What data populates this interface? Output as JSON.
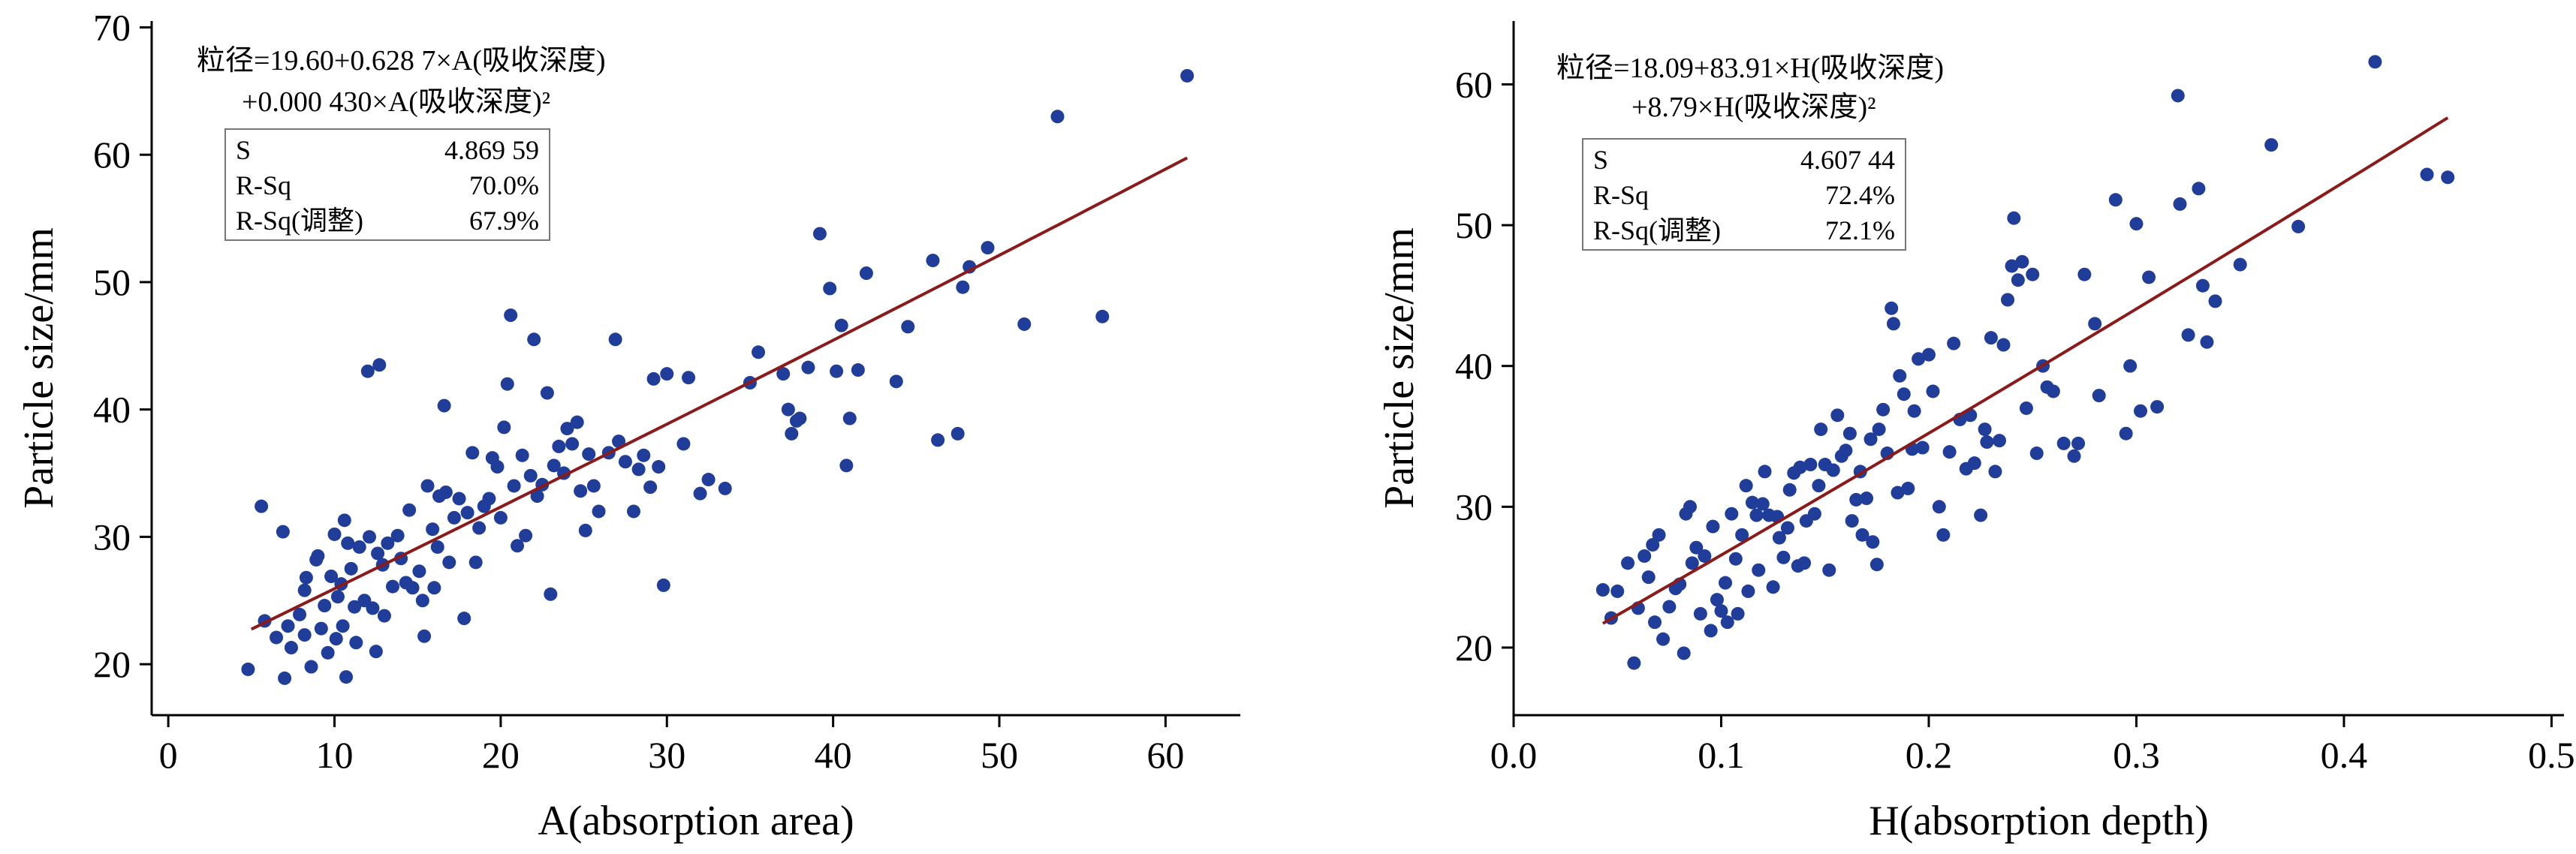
{
  "chart_data": [
    {
      "type": "scatter",
      "id": "left",
      "xlabel": "A(absorption area)",
      "ylabel": "Particle size/mm",
      "xlim": [
        -1,
        64.5
      ],
      "ylim": [
        16,
        70.5
      ],
      "xticks": [
        0,
        10,
        20,
        30,
        40,
        50,
        60
      ],
      "yticks": [
        20,
        30,
        40,
        50,
        60,
        70
      ],
      "equation": [
        "粒径=19.60+0.628 7×A(吸收深度)",
        "+0.000 430×A(吸收深度)²"
      ],
      "stats": [
        {
          "name": "S",
          "value": "4.869 59"
        },
        {
          "name": "R-Sq",
          "value": "70.0%"
        },
        {
          "name": "R-Sq(调整)",
          "value": "67.9%"
        }
      ],
      "point_color": "#1f3d99",
      "line_color": "#8b1a1a",
      "fit": {
        "intercept": 19.6,
        "b1": 0.6287,
        "b2": 0.00043,
        "x_range": [
          5,
          61.3
        ]
      },
      "points": [
        [
          4.8,
          19.6
        ],
        [
          5.6,
          32.4
        ],
        [
          5.8,
          23.4
        ],
        [
          6.5,
          22.1
        ],
        [
          6.9,
          30.4
        ],
        [
          7.0,
          18.9
        ],
        [
          7.2,
          23.0
        ],
        [
          7.4,
          21.3
        ],
        [
          7.9,
          23.9
        ],
        [
          8.2,
          22.3
        ],
        [
          8.2,
          25.8
        ],
        [
          8.3,
          26.8
        ],
        [
          8.6,
          19.8
        ],
        [
          8.9,
          28.2
        ],
        [
          9.0,
          28.5
        ],
        [
          9.2,
          22.8
        ],
        [
          9.4,
          24.6
        ],
        [
          9.6,
          20.9
        ],
        [
          9.8,
          26.9
        ],
        [
          10.0,
          30.2
        ],
        [
          10.1,
          22.0
        ],
        [
          10.2,
          25.3
        ],
        [
          10.4,
          26.3
        ],
        [
          10.5,
          23.0
        ],
        [
          10.6,
          31.3
        ],
        [
          10.7,
          19.0
        ],
        [
          10.8,
          29.5
        ],
        [
          11.0,
          27.5
        ],
        [
          11.2,
          24.5
        ],
        [
          11.3,
          21.7
        ],
        [
          11.5,
          29.2
        ],
        [
          11.8,
          25.0
        ],
        [
          12.0,
          43.0
        ],
        [
          12.1,
          30.0
        ],
        [
          12.3,
          24.4
        ],
        [
          12.5,
          21.0
        ],
        [
          12.6,
          28.7
        ],
        [
          12.7,
          43.5
        ],
        [
          12.9,
          27.8
        ],
        [
          13.0,
          23.8
        ],
        [
          13.2,
          29.5
        ],
        [
          13.5,
          26.1
        ],
        [
          13.8,
          30.1
        ],
        [
          14.0,
          28.3
        ],
        [
          14.3,
          26.4
        ],
        [
          14.5,
          32.1
        ],
        [
          14.7,
          26.0
        ],
        [
          15.1,
          27.3
        ],
        [
          15.3,
          25.0
        ],
        [
          15.4,
          22.2
        ],
        [
          15.6,
          34.0
        ],
        [
          15.9,
          30.6
        ],
        [
          16.0,
          26.0
        ],
        [
          16.2,
          29.2
        ],
        [
          16.3,
          33.2
        ],
        [
          16.6,
          40.3
        ],
        [
          16.7,
          33.5
        ],
        [
          16.9,
          28.0
        ],
        [
          17.2,
          31.5
        ],
        [
          17.5,
          33.0
        ],
        [
          17.8,
          23.6
        ],
        [
          18.0,
          31.9
        ],
        [
          18.3,
          36.6
        ],
        [
          18.5,
          28.0
        ],
        [
          18.7,
          30.7
        ],
        [
          19.0,
          32.4
        ],
        [
          19.3,
          33.0
        ],
        [
          19.5,
          36.2
        ],
        [
          19.8,
          35.5
        ],
        [
          20.0,
          31.5
        ],
        [
          20.2,
          38.6
        ],
        [
          20.4,
          42.0
        ],
        [
          20.6,
          47.4
        ],
        [
          20.8,
          34.0
        ],
        [
          21.0,
          29.3
        ],
        [
          21.3,
          36.4
        ],
        [
          21.5,
          30.1
        ],
        [
          21.8,
          34.8
        ],
        [
          22.0,
          45.5
        ],
        [
          22.2,
          33.2
        ],
        [
          22.5,
          34.1
        ],
        [
          22.8,
          41.3
        ],
        [
          23.0,
          25.5
        ],
        [
          23.2,
          35.6
        ],
        [
          23.5,
          37.1
        ],
        [
          23.8,
          35.0
        ],
        [
          24.0,
          38.5
        ],
        [
          24.3,
          37.3
        ],
        [
          24.6,
          39.0
        ],
        [
          24.8,
          33.6
        ],
        [
          25.1,
          30.5
        ],
        [
          25.3,
          36.5
        ],
        [
          25.6,
          34.0
        ],
        [
          25.9,
          32.0
        ],
        [
          26.5,
          36.6
        ],
        [
          26.9,
          45.5
        ],
        [
          27.1,
          37.5
        ],
        [
          27.5,
          35.9
        ],
        [
          28.0,
          32.0
        ],
        [
          28.3,
          35.3
        ],
        [
          28.6,
          36.4
        ],
        [
          29.0,
          33.9
        ],
        [
          29.2,
          42.4
        ],
        [
          29.5,
          35.5
        ],
        [
          29.8,
          26.2
        ],
        [
          30.0,
          42.8
        ],
        [
          31.0,
          37.3
        ],
        [
          31.3,
          42.5
        ],
        [
          32.0,
          33.4
        ],
        [
          32.5,
          34.5
        ],
        [
          33.5,
          33.8
        ],
        [
          35.0,
          42.1
        ],
        [
          35.5,
          44.5
        ],
        [
          37.0,
          42.8
        ],
        [
          37.3,
          40.0
        ],
        [
          37.5,
          38.1
        ],
        [
          37.8,
          39.1
        ],
        [
          38.0,
          39.3
        ],
        [
          38.5,
          43.3
        ],
        [
          39.2,
          53.8
        ],
        [
          39.8,
          49.5
        ],
        [
          40.2,
          43.0
        ],
        [
          40.5,
          46.6
        ],
        [
          40.8,
          35.6
        ],
        [
          41.0,
          39.3
        ],
        [
          41.5,
          43.1
        ],
        [
          42.0,
          50.7
        ],
        [
          43.8,
          42.2
        ],
        [
          44.5,
          46.5
        ],
        [
          46.0,
          51.7
        ],
        [
          46.3,
          37.6
        ],
        [
          47.5,
          38.1
        ],
        [
          47.8,
          49.6
        ],
        [
          48.2,
          51.2
        ],
        [
          49.3,
          52.7
        ],
        [
          51.5,
          46.7
        ],
        [
          53.5,
          63.0
        ],
        [
          56.2,
          47.3
        ],
        [
          61.3,
          66.2
        ]
      ]
    },
    {
      "type": "scatter",
      "id": "right",
      "xlabel": "H(absorption depth)",
      "ylabel": "Particle size/mm",
      "xlim": [
        0.0,
        0.506
      ],
      "ylim": [
        15.2,
        64.5
      ],
      "xticks": [
        0.0,
        0.1,
        0.2,
        0.3,
        0.4,
        0.5
      ],
      "yticks": [
        20,
        30,
        40,
        50,
        60
      ],
      "xtick_labels": [
        "0.0",
        "0.1",
        "0.2",
        "0.3",
        "0.4",
        "0.5"
      ],
      "equation": [
        "粒径=18.09+83.91×H(吸收深度)",
        "+8.79×H(吸收深度)²"
      ],
      "stats": [
        {
          "name": "S",
          "value": "4.607 44"
        },
        {
          "name": "R-Sq",
          "value": "72.4%"
        },
        {
          "name": "R-Sq(调整)",
          "value": "72.1%"
        }
      ],
      "point_color": "#1f3d99",
      "line_color": "#8b1a1a",
      "fit": {
        "intercept": 18.09,
        "b1": 83.91,
        "b2": 8.79,
        "x_range": [
          0.043,
          0.45
        ]
      },
      "points": [
        [
          0.043,
          24.1
        ],
        [
          0.047,
          22.1
        ],
        [
          0.05,
          24.0
        ],
        [
          0.055,
          26.0
        ],
        [
          0.058,
          18.9
        ],
        [
          0.06,
          22.8
        ],
        [
          0.063,
          26.5
        ],
        [
          0.065,
          25.0
        ],
        [
          0.067,
          27.3
        ],
        [
          0.068,
          21.8
        ],
        [
          0.07,
          28.0
        ],
        [
          0.072,
          20.6
        ],
        [
          0.075,
          22.9
        ],
        [
          0.078,
          24.2
        ],
        [
          0.08,
          24.5
        ],
        [
          0.082,
          19.6
        ],
        [
          0.083,
          29.5
        ],
        [
          0.085,
          30.0
        ],
        [
          0.086,
          26.0
        ],
        [
          0.088,
          27.1
        ],
        [
          0.09,
          22.4
        ],
        [
          0.092,
          26.5
        ],
        [
          0.095,
          21.2
        ],
        [
          0.096,
          28.6
        ],
        [
          0.098,
          23.4
        ],
        [
          0.1,
          22.6
        ],
        [
          0.102,
          24.6
        ],
        [
          0.103,
          21.8
        ],
        [
          0.105,
          29.5
        ],
        [
          0.107,
          26.3
        ],
        [
          0.108,
          22.4
        ],
        [
          0.11,
          28.0
        ],
        [
          0.112,
          31.5
        ],
        [
          0.113,
          24.0
        ],
        [
          0.115,
          30.3
        ],
        [
          0.117,
          29.4
        ],
        [
          0.118,
          25.5
        ],
        [
          0.12,
          30.2
        ],
        [
          0.121,
          32.5
        ],
        [
          0.123,
          29.4
        ],
        [
          0.125,
          24.3
        ],
        [
          0.127,
          29.3
        ],
        [
          0.128,
          27.8
        ],
        [
          0.13,
          26.4
        ],
        [
          0.132,
          28.5
        ],
        [
          0.133,
          31.2
        ],
        [
          0.135,
          32.4
        ],
        [
          0.137,
          25.8
        ],
        [
          0.138,
          32.8
        ],
        [
          0.14,
          26.0
        ],
        [
          0.141,
          29.0
        ],
        [
          0.143,
          33.0
        ],
        [
          0.145,
          29.5
        ],
        [
          0.147,
          31.5
        ],
        [
          0.148,
          35.5
        ],
        [
          0.15,
          33.0
        ],
        [
          0.152,
          25.5
        ],
        [
          0.154,
          32.6
        ],
        [
          0.156,
          36.5
        ],
        [
          0.158,
          33.6
        ],
        [
          0.16,
          34.0
        ],
        [
          0.162,
          35.2
        ],
        [
          0.163,
          29.0
        ],
        [
          0.165,
          30.5
        ],
        [
          0.167,
          32.5
        ],
        [
          0.168,
          28.0
        ],
        [
          0.17,
          30.6
        ],
        [
          0.172,
          34.8
        ],
        [
          0.173,
          27.5
        ],
        [
          0.175,
          25.9
        ],
        [
          0.176,
          35.5
        ],
        [
          0.178,
          36.9
        ],
        [
          0.18,
          33.8
        ],
        [
          0.182,
          44.1
        ],
        [
          0.183,
          43.0
        ],
        [
          0.185,
          31.0
        ],
        [
          0.186,
          39.3
        ],
        [
          0.188,
          38.0
        ],
        [
          0.19,
          31.3
        ],
        [
          0.192,
          34.1
        ],
        [
          0.193,
          36.8
        ],
        [
          0.195,
          40.5
        ],
        [
          0.197,
          34.2
        ],
        [
          0.2,
          40.8
        ],
        [
          0.202,
          38.2
        ],
        [
          0.205,
          30.0
        ],
        [
          0.207,
          28.0
        ],
        [
          0.21,
          33.9
        ],
        [
          0.212,
          41.6
        ],
        [
          0.215,
          36.2
        ],
        [
          0.218,
          32.7
        ],
        [
          0.22,
          36.5
        ],
        [
          0.222,
          33.1
        ],
        [
          0.225,
          29.4
        ],
        [
          0.227,
          35.5
        ],
        [
          0.228,
          34.6
        ],
        [
          0.23,
          42.0
        ],
        [
          0.232,
          32.5
        ],
        [
          0.234,
          34.7
        ],
        [
          0.236,
          41.5
        ],
        [
          0.238,
          44.7
        ],
        [
          0.24,
          47.1
        ],
        [
          0.241,
          50.5
        ],
        [
          0.243,
          46.1
        ],
        [
          0.245,
          47.4
        ],
        [
          0.247,
          37.0
        ],
        [
          0.25,
          46.5
        ],
        [
          0.252,
          33.8
        ],
        [
          0.255,
          40.0
        ],
        [
          0.257,
          38.5
        ],
        [
          0.26,
          38.2
        ],
        [
          0.265,
          34.5
        ],
        [
          0.27,
          33.6
        ],
        [
          0.272,
          34.5
        ],
        [
          0.275,
          46.5
        ],
        [
          0.28,
          43.0
        ],
        [
          0.282,
          37.9
        ],
        [
          0.29,
          51.8
        ],
        [
          0.295,
          35.2
        ],
        [
          0.297,
          40.0
        ],
        [
          0.3,
          50.1
        ],
        [
          0.302,
          36.8
        ],
        [
          0.306,
          46.3
        ],
        [
          0.31,
          37.1
        ],
        [
          0.32,
          59.2
        ],
        [
          0.321,
          51.5
        ],
        [
          0.325,
          42.2
        ],
        [
          0.33,
          52.6
        ],
        [
          0.332,
          45.7
        ],
        [
          0.334,
          41.7
        ],
        [
          0.338,
          44.6
        ],
        [
          0.35,
          47.2
        ],
        [
          0.365,
          55.7
        ],
        [
          0.378,
          49.9
        ],
        [
          0.415,
          61.6
        ],
        [
          0.44,
          53.6
        ],
        [
          0.45,
          53.4
        ]
      ]
    }
  ]
}
